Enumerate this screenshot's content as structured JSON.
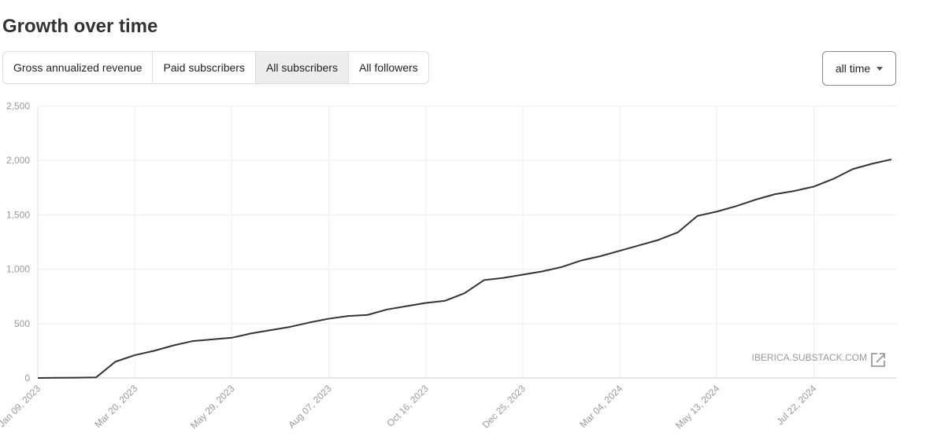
{
  "header": {
    "title": "Growth over time"
  },
  "tabs": {
    "items": [
      "Gross annualized revenue",
      "Paid subscribers",
      "All subscribers",
      "All followers"
    ],
    "active": 2
  },
  "range_selector": {
    "label": "all time"
  },
  "watermark": "IBERICA.SUBSTACK.COM",
  "chart_data": {
    "type": "line",
    "x": [
      "2023-01-09",
      "2023-01-23",
      "2023-02-06",
      "2023-02-20",
      "2023-03-06",
      "2023-03-20",
      "2023-04-03",
      "2023-04-17",
      "2023-05-01",
      "2023-05-15",
      "2023-05-29",
      "2023-06-12",
      "2023-06-26",
      "2023-07-10",
      "2023-07-24",
      "2023-08-07",
      "2023-08-21",
      "2023-09-04",
      "2023-09-18",
      "2023-10-02",
      "2023-10-16",
      "2023-10-30",
      "2023-11-13",
      "2023-11-27",
      "2023-12-11",
      "2023-12-25",
      "2024-01-08",
      "2024-01-22",
      "2024-02-05",
      "2024-02-19",
      "2024-03-04",
      "2024-03-18",
      "2024-04-01",
      "2024-04-15",
      "2024-04-29",
      "2024-05-13",
      "2024-05-27",
      "2024-06-10",
      "2024-06-24",
      "2024-07-08",
      "2024-07-22",
      "2024-08-05",
      "2024-08-19",
      "2024-09-02",
      "2024-09-16"
    ],
    "series": [
      {
        "name": "All subscribers",
        "color": "#333333",
        "values": [
          0,
          2,
          3,
          5,
          150,
          210,
          250,
          300,
          340,
          355,
          370,
          410,
          440,
          470,
          510,
          545,
          570,
          580,
          630,
          660,
          690,
          710,
          780,
          900,
          920,
          950,
          980,
          1020,
          1080,
          1120,
          1170,
          1220,
          1270,
          1340,
          1490,
          1530,
          1580,
          1640,
          1690,
          1720,
          1760,
          1830,
          1920,
          1970,
          2010
        ]
      }
    ],
    "xlim": [
      "2023-01-09",
      "2024-09-20"
    ],
    "xticks": [
      {
        "value": "2023-01-09",
        "label": "Jan 09, 2023"
      },
      {
        "value": "2023-03-20",
        "label": "Mar 20, 2023"
      },
      {
        "value": "2023-05-29",
        "label": "May 29, 2023"
      },
      {
        "value": "2023-08-07",
        "label": "Aug 07, 2023"
      },
      {
        "value": "2023-10-16",
        "label": "Oct 16, 2023"
      },
      {
        "value": "2023-12-25",
        "label": "Dec 25, 2023"
      },
      {
        "value": "2024-03-04",
        "label": "Mar 04, 2024"
      },
      {
        "value": "2024-05-13",
        "label": "May 13, 2024"
      },
      {
        "value": "2024-07-22",
        "label": "Jul 22, 2024"
      }
    ],
    "ylim": [
      0,
      2500
    ],
    "yticks": [
      0,
      500,
      {
        "value": 1000,
        "label": "1,000"
      },
      {
        "value": 1500,
        "label": "1,500"
      },
      {
        "value": 2000,
        "label": "2,000"
      },
      {
        "value": 2500,
        "label": "2,500"
      }
    ],
    "grid": true
  }
}
